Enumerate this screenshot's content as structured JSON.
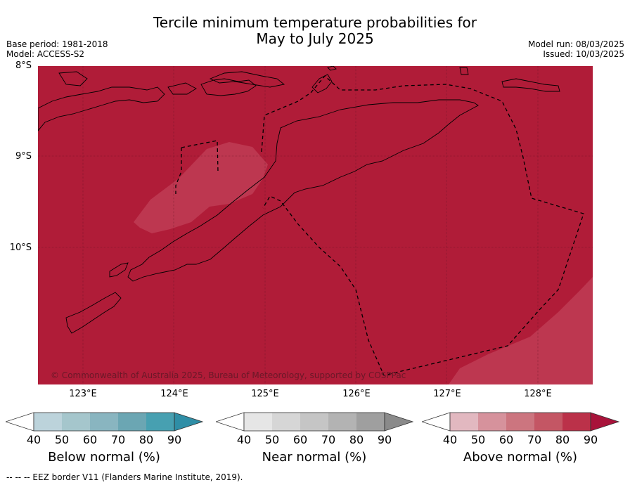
{
  "header": {
    "title_line1": "Tercile minimum temperature probabilities for",
    "title_line2": "May to July 2025",
    "base_period": "Base period: 1981-2018",
    "model": "Model: ACCESS-S2",
    "model_run": "Model run: 08/03/2025",
    "issued": "Issued: 10/03/2025"
  },
  "map": {
    "latitude_labels": [
      "8°S",
      "9°S",
      "10°S"
    ],
    "longitude_labels": [
      "123°E",
      "124°E",
      "125°E",
      "126°E",
      "127°E",
      "128°E"
    ],
    "copyright": "© Commonwealth of Australia 2025, Bureau of Meteorology, supported by COSPPac",
    "dominant_category": "Above normal",
    "dominant_probability_range": "80-90",
    "colors": {
      "above_90": "#b01c38",
      "above_80": "#bd3750",
      "land_outline": "#000000",
      "graticule": "#5a1020"
    }
  },
  "colorbars": [
    {
      "name": "Below normal (%)",
      "ticks": [
        "40",
        "50",
        "60",
        "70",
        "80",
        "90"
      ],
      "colors": [
        "#bcd3db",
        "#a5c6cc",
        "#89b5c0",
        "#6ba6b3",
        "#47a0b1",
        "#2f8ea6"
      ]
    },
    {
      "name": "Near normal (%)",
      "ticks": [
        "40",
        "50",
        "60",
        "70",
        "80",
        "90"
      ],
      "colors": [
        "#e6e6e6",
        "#d6d6d6",
        "#c5c5c5",
        "#b3b3b3",
        "#9f9f9f",
        "#8a8a8a"
      ]
    },
    {
      "name": "Above normal (%)",
      "ticks": [
        "40",
        "50",
        "60",
        "70",
        "80",
        "90"
      ],
      "colors": [
        "#e2b8c0",
        "#d6929c",
        "#cc757f",
        "#c45664",
        "#bb3149",
        "#a8133a"
      ]
    }
  ],
  "footer": "--  --  -- EEZ border V11 (Flanders Marine Institute, 2019)."
}
